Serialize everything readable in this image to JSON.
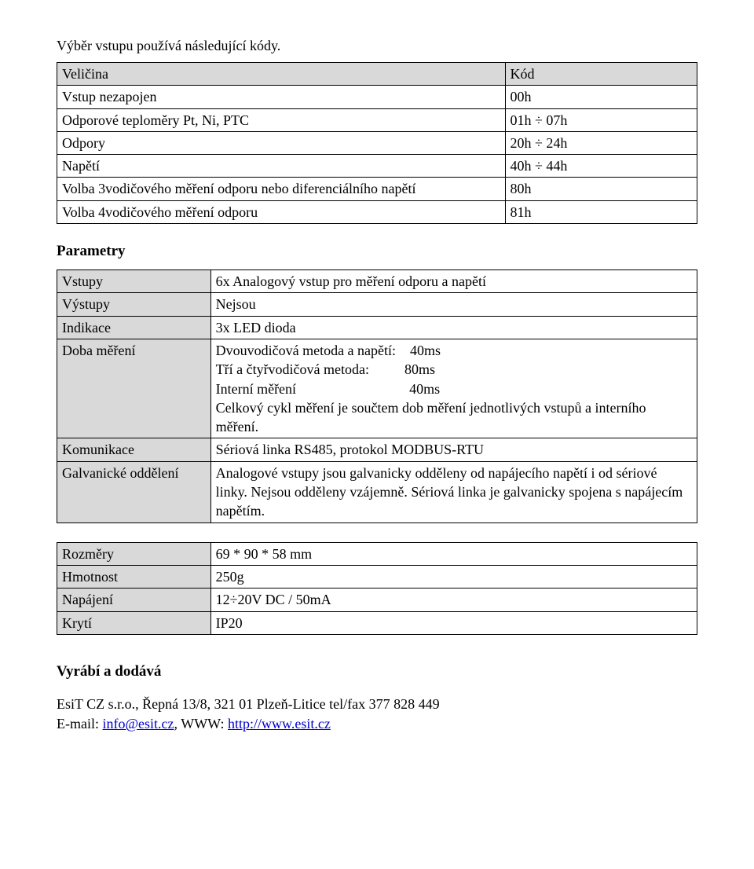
{
  "intro": "Výběr vstupu používá následující kódy.",
  "table1": {
    "header": {
      "c1": "Veličina",
      "c2": "Kód"
    },
    "rows": [
      {
        "c1": "Vstup nezapojen",
        "c2": "00h"
      },
      {
        "c1": "Odporové teploměry Pt, Ni, PTC",
        "c2": "01h ÷ 07h"
      },
      {
        "c1": "Odpory",
        "c2": "20h ÷ 24h"
      },
      {
        "c1": "Napětí",
        "c2": "40h ÷ 44h"
      },
      {
        "c1": "Volba 3vodičového měření odporu nebo diferenciálního napětí",
        "c2": "80h"
      },
      {
        "c1": "Volba 4vodičového měření odporu",
        "c2": "81h"
      }
    ]
  },
  "section_params": "Parametry",
  "table2": {
    "rows": [
      {
        "label": "Vstupy",
        "value": "6x Analogový vstup pro měření odporu a napětí"
      },
      {
        "label": "Výstupy",
        "value": "Nejsou"
      },
      {
        "label": "Indikace",
        "value": "3x LED dioda"
      },
      {
        "label": "Doba měření",
        "lines": {
          "l1a": "Dvouvodičová metoda a napětí:",
          "l1b": "40ms",
          "l2a": "Tří a čtyřvodičová metoda:",
          "l2b": "80ms",
          "l3a": "Interní měření",
          "l3b": "40ms",
          "l4": "Celkový cykl měření je součtem dob měření jednotlivých vstupů a interního měření."
        }
      },
      {
        "label": "Komunikace",
        "value": "Sériová linka RS485, protokol MODBUS-RTU"
      },
      {
        "label": "Galvanické oddělení",
        "value": "Analogové vstupy jsou galvanicky odděleny od napájecího napětí i od sériové linky. Nejsou odděleny vzájemně. Sériová linka je galvanicky spojena s napájecím napětím."
      }
    ]
  },
  "table3": {
    "rows": [
      {
        "label": "Rozměry",
        "value": "69 * 90 * 58 mm"
      },
      {
        "label": "Hmotnost",
        "value": "250g"
      },
      {
        "label": "Napájení",
        "value": "12÷20V DC / 50mA"
      },
      {
        "label": "Krytí",
        "value": "IP20"
      }
    ]
  },
  "vendor_heading": "Vyrábí a dodává",
  "contact": {
    "line1": "EsiT CZ s.r.o., Řepná 13/8, 321 01 Plzeň-Litice tel/fax 377 828 449",
    "email_label": " E-mail: ",
    "email": "info@esit.cz",
    "www_label": ", WWW: ",
    "www": "http://www.esit.cz"
  }
}
